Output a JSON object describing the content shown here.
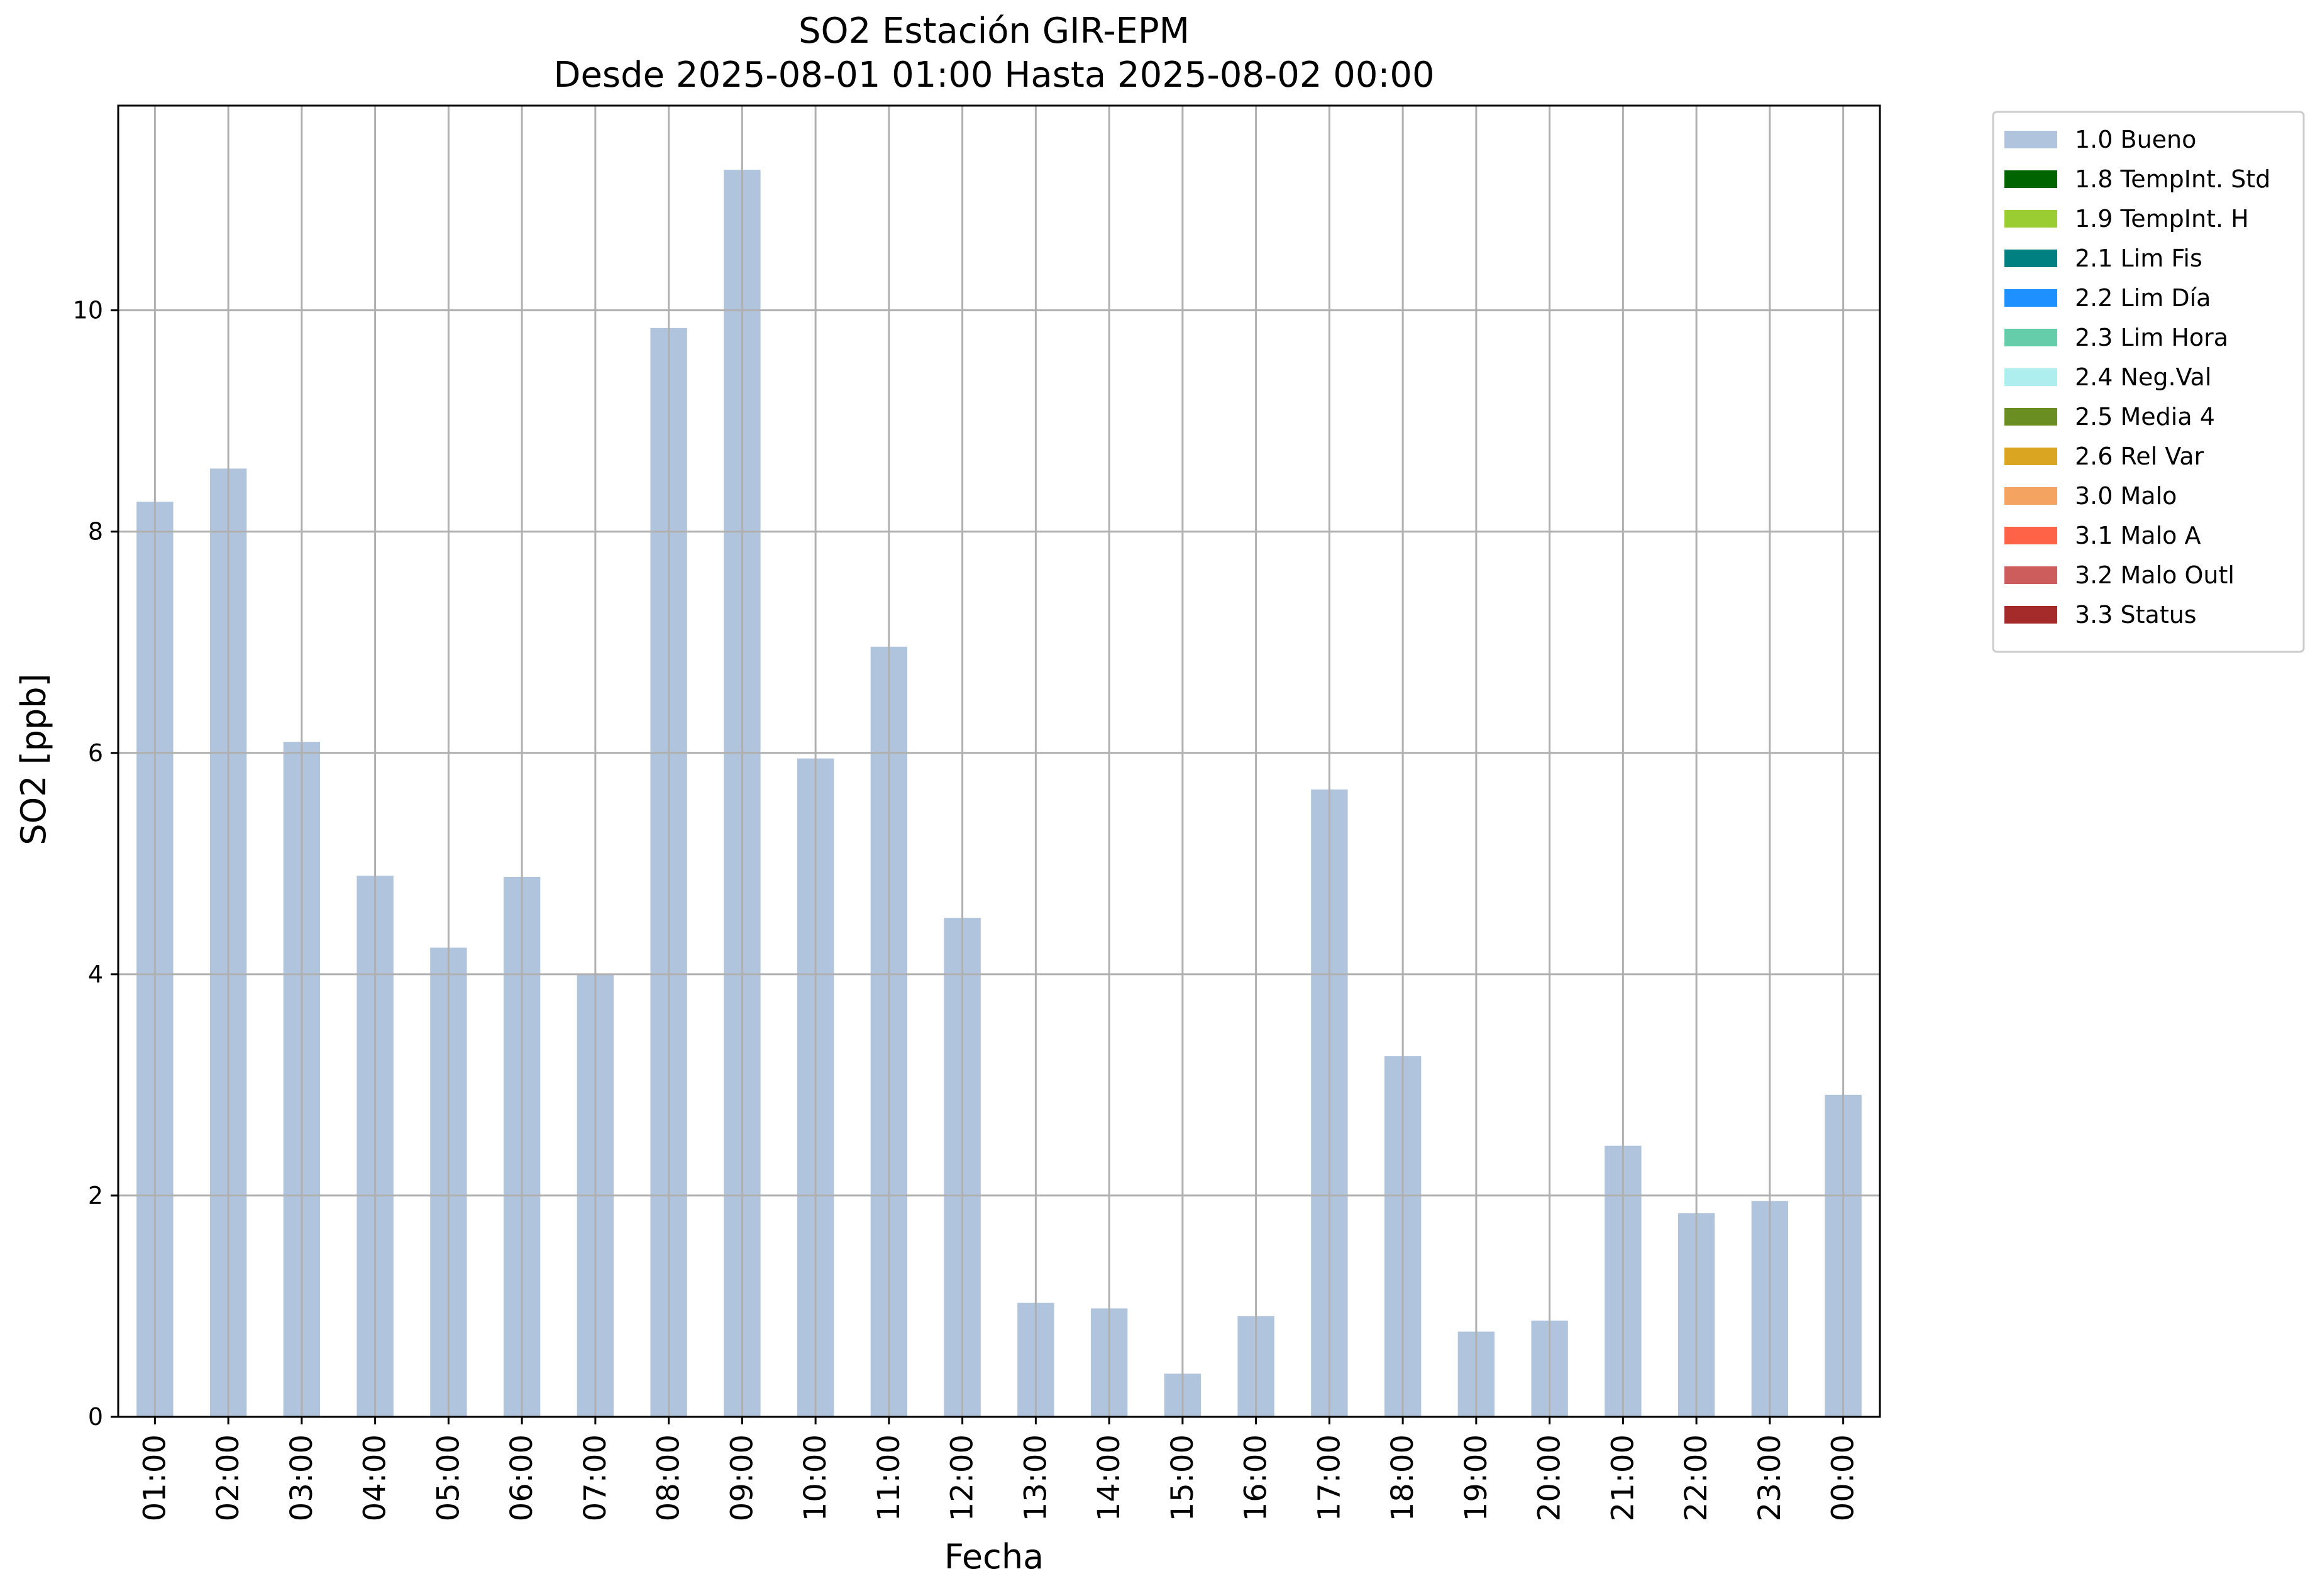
{
  "chart_data": {
    "type": "bar",
    "title": "SO2 Estación GIR-EPM",
    "subtitle": "Desde 2025-08-01 01:00 Hasta 2025-08-02 00:00",
    "xlabel": "Fecha",
    "ylabel": "SO2 [ppb]",
    "ylim": [
      0,
      11.85
    ],
    "yticks": [
      0,
      2,
      4,
      6,
      8,
      10
    ],
    "grid": true,
    "legend_placement": "outside-top-right",
    "bar_color": "#b0c4de",
    "categories": [
      "01:00",
      "02:00",
      "03:00",
      "04:00",
      "05:00",
      "06:00",
      "07:00",
      "08:00",
      "09:00",
      "10:00",
      "11:00",
      "12:00",
      "13:00",
      "14:00",
      "15:00",
      "16:00",
      "17:00",
      "18:00",
      "19:00",
      "20:00",
      "21:00",
      "22:00",
      "23:00",
      "00:00"
    ],
    "values": [
      8.27,
      8.57,
      6.1,
      4.89,
      4.24,
      4.88,
      4.0,
      9.84,
      11.27,
      5.95,
      6.96,
      4.51,
      1.03,
      0.98,
      0.39,
      0.91,
      5.67,
      3.26,
      0.77,
      0.87,
      2.45,
      1.84,
      1.95,
      2.91
    ],
    "legend": [
      {
        "label": "1.0 Bueno",
        "color": "#b0c4de"
      },
      {
        "label": "1.8 TempInt. Std",
        "color": "#006400"
      },
      {
        "label": "1.9 TempInt. H",
        "color": "#9acd32"
      },
      {
        "label": "2.1 Lim Fis",
        "color": "#008080"
      },
      {
        "label": "2.2 Lim Día",
        "color": "#1e90ff"
      },
      {
        "label": "2.3 Lim Hora",
        "color": "#66cdaa"
      },
      {
        "label": "2.4 Neg.Val",
        "color": "#afeeee"
      },
      {
        "label": "2.5 Media 4",
        "color": "#6b8e23"
      },
      {
        "label": "2.6 Rel Var",
        "color": "#daa520"
      },
      {
        "label": "3.0 Malo",
        "color": "#f4a460"
      },
      {
        "label": "3.1 Malo A",
        "color": "#ff6347"
      },
      {
        "label": "3.2 Malo Outl",
        "color": "#cd5c5c"
      },
      {
        "label": "3.3 Status",
        "color": "#a52a2a"
      }
    ]
  }
}
